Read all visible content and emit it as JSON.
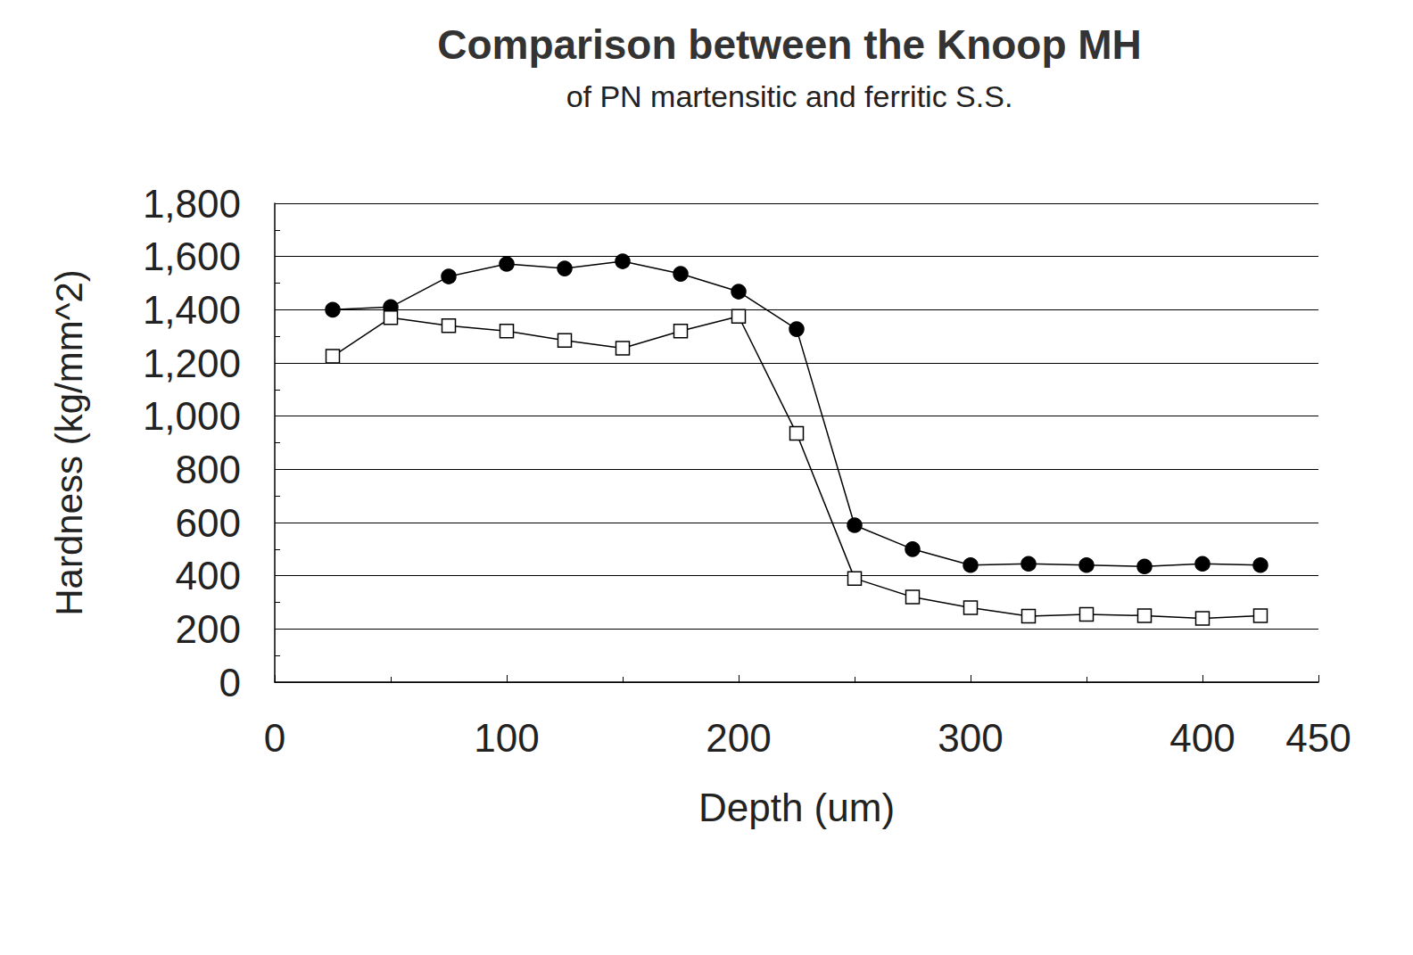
{
  "chart_data": {
    "type": "line",
    "title": "Comparison between the Knoop MH",
    "subtitle": "of PN martensitic and ferritic S.S.",
    "x_label": "Depth (um)",
    "y_label": "Hardness (kg/mm^2)",
    "xlim": [
      0,
      450
    ],
    "xticks": [
      0,
      100,
      200,
      300,
      400
    ],
    "ylim": [
      0,
      1800
    ],
    "yticks": [
      0,
      200,
      400,
      600,
      800,
      1000,
      1200,
      1400,
      1600,
      1800
    ],
    "grid": true,
    "series": [
      {
        "color": "#000000",
        "marker": "circle",
        "x": [
          25,
          50,
          75,
          100,
          125,
          150,
          175,
          200,
          225,
          250,
          275,
          300,
          325,
          350,
          375,
          400,
          425
        ],
        "values": [
          1400,
          1410,
          1525,
          1572,
          1555,
          1582,
          1535,
          1468,
          1327,
          590,
          500,
          440,
          445,
          440,
          435,
          445,
          440
        ]
      },
      {
        "color": "#000000",
        "marker": "square",
        "x": [
          25,
          50,
          75,
          100,
          125,
          150,
          175,
          200,
          225,
          250,
          275,
          300,
          325,
          350,
          375,
          400,
          425
        ],
        "values": [
          1225,
          1370,
          1340,
          1320,
          1285,
          1255,
          1320,
          1375,
          935,
          390,
          320,
          280,
          248,
          255,
          250,
          240,
          250
        ]
      }
    ]
  }
}
